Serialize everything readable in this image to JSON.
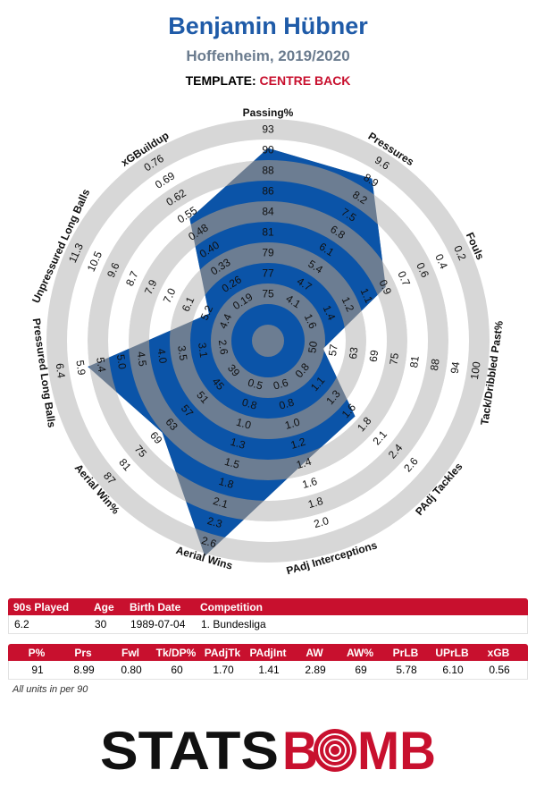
{
  "header": {
    "title": "Benjamin Hübner",
    "subtitle": "Hoffenheim, 2019/2020",
    "template_label": "TEMPLATE:",
    "template_value": "CENTRE BACK"
  },
  "colors": {
    "title": "#1f5ba8",
    "accent": "#c8102e",
    "radar_fill": "#0b54a8",
    "ring_gray": "#d7d7d7"
  },
  "chart_data": {
    "type": "radar",
    "player": "Benjamin Hübner",
    "axes": [
      {
        "label": "Passing%",
        "ticks": [
          "75",
          "77",
          "79",
          "81",
          "84",
          "86",
          "88",
          "90",
          "93"
        ],
        "value": 91,
        "min": 75,
        "max": 93
      },
      {
        "label": "Pressures",
        "ticks": [
          "4.1",
          "4.7",
          "5.4",
          "6.1",
          "6.8",
          "7.5",
          "8.2",
          "8.9",
          "9.6"
        ],
        "value": 8.99,
        "min": 4.1,
        "max": 9.6
      },
      {
        "label": "Fouls",
        "ticks": [
          "1.6",
          "1.4",
          "1.2",
          "1.1",
          "0.9",
          "0.7",
          "0.6",
          "0.4",
          "0.2"
        ],
        "value": 0.8,
        "min": 1.6,
        "max": 0.2
      },
      {
        "label": "Tack/Dribbled Past%",
        "ticks": [
          "50",
          "57",
          "63",
          "69",
          "75",
          "81",
          "88",
          "94",
          "100"
        ],
        "value": 60,
        "min": 50,
        "max": 100
      },
      {
        "label": "PAdj Tackles",
        "ticks": [
          "0.8",
          "1.1",
          "1.3",
          "1.6",
          "1.8",
          "2.1",
          "2.4",
          "2.6",
          ""
        ],
        "value": 1.7,
        "min": 0.5,
        "max": 2.9
      },
      {
        "label": "PAdj Interceptions",
        "ticks": [
          "0.6",
          "0.8",
          "1.0",
          "1.2",
          "1.4",
          "1.6",
          "1.8",
          "2.0",
          ""
        ],
        "value": 1.41,
        "min": 0.4,
        "max": 2.2
      },
      {
        "label": "Aerial Wins",
        "ticks": [
          "0.5",
          "0.8",
          "1.0",
          "1.3",
          "1.5",
          "1.8",
          "2.1",
          "2.3",
          "2.6"
        ],
        "value": 2.89,
        "min": 0.5,
        "max": 2.6
      },
      {
        "label": "Aerial Win%",
        "ticks": [
          "39",
          "45",
          "51",
          "57",
          "63",
          "69",
          "75",
          "81",
          "87"
        ],
        "value": 69,
        "min": 39,
        "max": 87
      },
      {
        "label": "Pressured Long Balls",
        "ticks": [
          "2.6",
          "3.1",
          "3.5",
          "4.0",
          "4.5",
          "5.0",
          "5.4",
          "5.9",
          "6.4"
        ],
        "value": 5.78,
        "min": 2.6,
        "max": 6.4
      },
      {
        "label": "Unpressured Long Balls",
        "ticks": [
          "4.4",
          "5.2",
          "6.1",
          "7.0",
          "7.9",
          "8.7",
          "9.6",
          "10.5",
          "11.3"
        ],
        "value": 6.1,
        "min": 4.4,
        "max": 11.3
      },
      {
        "label": "xGBuildup",
        "ticks": [
          "0.19",
          "0.26",
          "0.33",
          "0.40",
          "0.48",
          "0.55",
          "0.62",
          "0.69",
          "0.76"
        ],
        "value": 0.56,
        "min": 0.19,
        "max": 0.76
      }
    ]
  },
  "info_table": {
    "headers": [
      "90s Played",
      "Age",
      "Birth Date",
      "Competition"
    ],
    "values": [
      "6.2",
      "30",
      "1989-07-04",
      "1. Bundesliga"
    ]
  },
  "stats_table": {
    "headers": [
      "P%",
      "Prs",
      "Fwl",
      "Tk/DP%",
      "PAdjTk",
      "PAdjInt",
      "AW",
      "AW%",
      "PrLB",
      "UPrLB",
      "xGB"
    ],
    "values": [
      "91",
      "8.99",
      "0.80",
      "60",
      "1.70",
      "1.41",
      "2.89",
      "69",
      "5.78",
      "6.10",
      "0.56"
    ]
  },
  "footnote": "All units in per 90",
  "logo": {
    "part1": "STATS",
    "part2": "B",
    "part3": "MB"
  }
}
